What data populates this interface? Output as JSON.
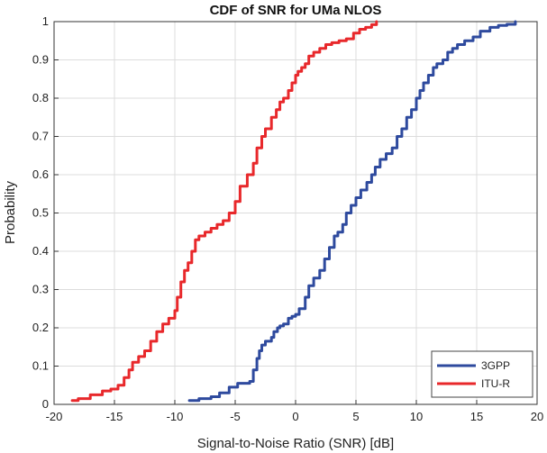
{
  "chart_data": {
    "type": "line",
    "title": "CDF of SNR for UMa NLOS",
    "xlabel": "Signal-to-Noise Ratio (SNR) [dB]",
    "ylabel": "Probability",
    "xlim": [
      -20,
      20
    ],
    "ylim": [
      0,
      1
    ],
    "xticks": [
      "-20",
      "-15",
      "-10",
      "-5",
      "0",
      "5",
      "10",
      "15",
      "20"
    ],
    "yticks": [
      "0",
      "0.1",
      "0.2",
      "0.3",
      "0.4",
      "0.5",
      "0.6",
      "0.7",
      "0.8",
      "0.9",
      "1"
    ],
    "grid": true,
    "legend_position": "bottom-right",
    "series": [
      {
        "name": "3GPP",
        "color": "#2e4a9e",
        "x": [
          -8.8,
          -8.0,
          -7.0,
          -6.3,
          -5.5,
          -4.8,
          -3.8,
          -3.5,
          -3.2,
          -3.0,
          -2.8,
          -2.5,
          -2.0,
          -1.8,
          -1.5,
          -1.3,
          -1.0,
          -0.6,
          -0.3,
          0.0,
          0.3,
          0.8,
          1.1,
          1.5,
          2.0,
          2.4,
          2.8,
          3.2,
          3.5,
          3.9,
          4.2,
          4.6,
          5.0,
          5.4,
          5.9,
          6.3,
          6.6,
          7.0,
          7.5,
          8.0,
          8.4,
          8.8,
          9.2,
          9.6,
          10.0,
          10.3,
          10.6,
          11.0,
          11.4,
          11.7,
          12.2,
          12.6,
          13.0,
          13.4,
          14.0,
          14.7,
          15.3,
          16.1,
          16.8,
          17.5,
          18.2
        ],
        "y": [
          0.01,
          0.015,
          0.02,
          0.03,
          0.045,
          0.055,
          0.06,
          0.09,
          0.12,
          0.14,
          0.155,
          0.165,
          0.175,
          0.19,
          0.2,
          0.205,
          0.21,
          0.225,
          0.23,
          0.235,
          0.25,
          0.28,
          0.31,
          0.33,
          0.35,
          0.38,
          0.41,
          0.44,
          0.45,
          0.47,
          0.5,
          0.52,
          0.54,
          0.56,
          0.58,
          0.6,
          0.62,
          0.64,
          0.655,
          0.67,
          0.7,
          0.72,
          0.75,
          0.77,
          0.8,
          0.82,
          0.84,
          0.86,
          0.88,
          0.89,
          0.9,
          0.92,
          0.93,
          0.94,
          0.95,
          0.96,
          0.975,
          0.985,
          0.99,
          0.993,
          1.0
        ]
      },
      {
        "name": "ITU-R",
        "color": "#e8282b",
        "x": [
          -18.5,
          -18.0,
          -17.0,
          -16.0,
          -15.3,
          -14.7,
          -14.2,
          -13.8,
          -13.5,
          -13.0,
          -12.5,
          -12.0,
          -11.5,
          -11.0,
          -10.5,
          -10.0,
          -9.8,
          -9.5,
          -9.2,
          -8.9,
          -8.6,
          -8.3,
          -8.0,
          -7.5,
          -7.0,
          -6.5,
          -6.0,
          -5.5,
          -5.0,
          -4.6,
          -4.0,
          -3.5,
          -3.2,
          -2.8,
          -2.5,
          -2.0,
          -1.6,
          -1.3,
          -1.0,
          -0.6,
          -0.3,
          0.0,
          0.2,
          0.5,
          0.8,
          1.1,
          1.5,
          2.0,
          2.5,
          3.0,
          3.6,
          4.2,
          4.8,
          5.3,
          5.8,
          6.3,
          6.7
        ],
        "y": [
          0.01,
          0.015,
          0.025,
          0.035,
          0.04,
          0.05,
          0.07,
          0.09,
          0.11,
          0.125,
          0.14,
          0.165,
          0.19,
          0.21,
          0.225,
          0.245,
          0.28,
          0.32,
          0.35,
          0.37,
          0.4,
          0.43,
          0.44,
          0.45,
          0.46,
          0.47,
          0.48,
          0.5,
          0.53,
          0.57,
          0.6,
          0.63,
          0.67,
          0.7,
          0.72,
          0.75,
          0.77,
          0.79,
          0.8,
          0.82,
          0.84,
          0.86,
          0.87,
          0.88,
          0.89,
          0.91,
          0.92,
          0.93,
          0.94,
          0.945,
          0.95,
          0.955,
          0.97,
          0.98,
          0.985,
          0.992,
          1.0
        ]
      }
    ]
  }
}
